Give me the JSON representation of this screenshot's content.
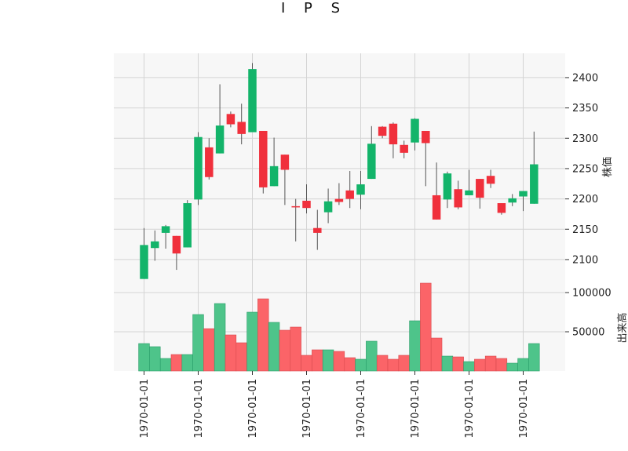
{
  "chart_data": {
    "type": "candlestick",
    "title": "I P S",
    "price_ylabel": "株価",
    "volume_ylabel": "出来高",
    "price_ylim": [
      2065,
      2440
    ],
    "price_yticks": [
      2100,
      2150,
      2200,
      2250,
      2300,
      2350,
      2400
    ],
    "volume_ylim": [
      0,
      115000
    ],
    "volume_yticks": [
      50000,
      100000
    ],
    "xtick_labels": [
      "1970-01-01",
      "1970-01-01",
      "1970-01-01",
      "1970-01-01",
      "1970-01-01",
      "1970-01-01",
      "1970-01-01",
      "1970-01-01"
    ],
    "xtick_bar_index": [
      0,
      5,
      10,
      15,
      20,
      25,
      30,
      35
    ],
    "grid": true,
    "colors": {
      "up": "#13b46a",
      "down": "#f0303c",
      "vol_up": "#4ec48a",
      "vol_down": "#fb6468",
      "wick": "#555555",
      "panel": "#f7f7f7",
      "grid": "#d4d4d4"
    },
    "bars": [
      {
        "open": 2068,
        "high": 2152,
        "low": 2068,
        "close": 2124,
        "volume": 35000
      },
      {
        "open": 2119,
        "high": 2148,
        "low": 2098,
        "close": 2130,
        "volume": 31000
      },
      {
        "open": 2144,
        "high": 2157,
        "low": 2118,
        "close": 2155,
        "volume": 16000
      },
      {
        "open": 2139,
        "high": 2139,
        "low": 2083,
        "close": 2110,
        "volume": 21000
      },
      {
        "open": 2120,
        "high": 2198,
        "low": 2120,
        "close": 2193,
        "volume": 21000
      },
      {
        "open": 2199,
        "high": 2310,
        "low": 2190,
        "close": 2302,
        "volume": 72000
      },
      {
        "open": 2285,
        "high": 2300,
        "low": 2232,
        "close": 2236,
        "volume": 54000
      },
      {
        "open": 2275,
        "high": 2389,
        "low": 2275,
        "close": 2321,
        "volume": 86000
      },
      {
        "open": 2340,
        "high": 2344,
        "low": 2318,
        "close": 2323,
        "volume": 46000
      },
      {
        "open": 2327,
        "high": 2357,
        "low": 2290,
        "close": 2307,
        "volume": 36000
      },
      {
        "open": 2310,
        "high": 2424,
        "low": 2310,
        "close": 2414,
        "volume": 75000
      },
      {
        "open": 2312,
        "high": 2312,
        "low": 2209,
        "close": 2219,
        "volume": 92000
      },
      {
        "open": 2221,
        "high": 2301,
        "low": 2221,
        "close": 2254,
        "volume": 62000
      },
      {
        "open": 2273,
        "high": 2273,
        "low": 2190,
        "close": 2248,
        "volume": 52000
      },
      {
        "open": 2188,
        "high": 2200,
        "low": 2130,
        "close": 2186,
        "volume": 56000
      },
      {
        "open": 2197,
        "high": 2224,
        "low": 2176,
        "close": 2185,
        "volume": 20000
      },
      {
        "open": 2152,
        "high": 2182,
        "low": 2116,
        "close": 2144,
        "volume": 27000
      },
      {
        "open": 2178,
        "high": 2217,
        "low": 2160,
        "close": 2196,
        "volume": 27000
      },
      {
        "open": 2200,
        "high": 2226,
        "low": 2190,
        "close": 2195,
        "volume": 25000
      },
      {
        "open": 2214,
        "high": 2246,
        "low": 2185,
        "close": 2200,
        "volume": 17000
      },
      {
        "open": 2207,
        "high": 2246,
        "low": 2183,
        "close": 2224,
        "volume": 15000
      },
      {
        "open": 2233,
        "high": 2320,
        "low": 2233,
        "close": 2291,
        "volume": 38000
      },
      {
        "open": 2319,
        "high": 2320,
        "low": 2300,
        "close": 2304,
        "volume": 20000
      },
      {
        "open": 2324,
        "high": 2326,
        "low": 2267,
        "close": 2290,
        "volume": 15000
      },
      {
        "open": 2289,
        "high": 2296,
        "low": 2267,
        "close": 2276,
        "volume": 20000
      },
      {
        "open": 2293,
        "high": 2333,
        "low": 2280,
        "close": 2332,
        "volume": 64000
      },
      {
        "open": 2312,
        "high": 2312,
        "low": 2221,
        "close": 2292,
        "volume": 112000
      },
      {
        "open": 2206,
        "high": 2260,
        "low": 2166,
        "close": 2166,
        "volume": 42000
      },
      {
        "open": 2199,
        "high": 2245,
        "low": 2185,
        "close": 2242,
        "volume": 19000
      },
      {
        "open": 2216,
        "high": 2230,
        "low": 2183,
        "close": 2186,
        "volume": 18000
      },
      {
        "open": 2206,
        "high": 2248,
        "low": 2206,
        "close": 2214,
        "volume": 12000
      },
      {
        "open": 2233,
        "high": 2233,
        "low": 2184,
        "close": 2202,
        "volume": 15000
      },
      {
        "open": 2238,
        "high": 2248,
        "low": 2218,
        "close": 2225,
        "volume": 19000
      },
      {
        "open": 2193,
        "high": 2193,
        "low": 2174,
        "close": 2177,
        "volume": 16000
      },
      {
        "open": 2194,
        "high": 2208,
        "low": 2188,
        "close": 2201,
        "volume": 10000
      },
      {
        "open": 2204,
        "high": 2213,
        "low": 2180,
        "close": 2213,
        "volume": 16000
      },
      {
        "open": 2192,
        "high": 2311,
        "low": 2192,
        "close": 2257,
        "volume": 35000
      }
    ]
  }
}
